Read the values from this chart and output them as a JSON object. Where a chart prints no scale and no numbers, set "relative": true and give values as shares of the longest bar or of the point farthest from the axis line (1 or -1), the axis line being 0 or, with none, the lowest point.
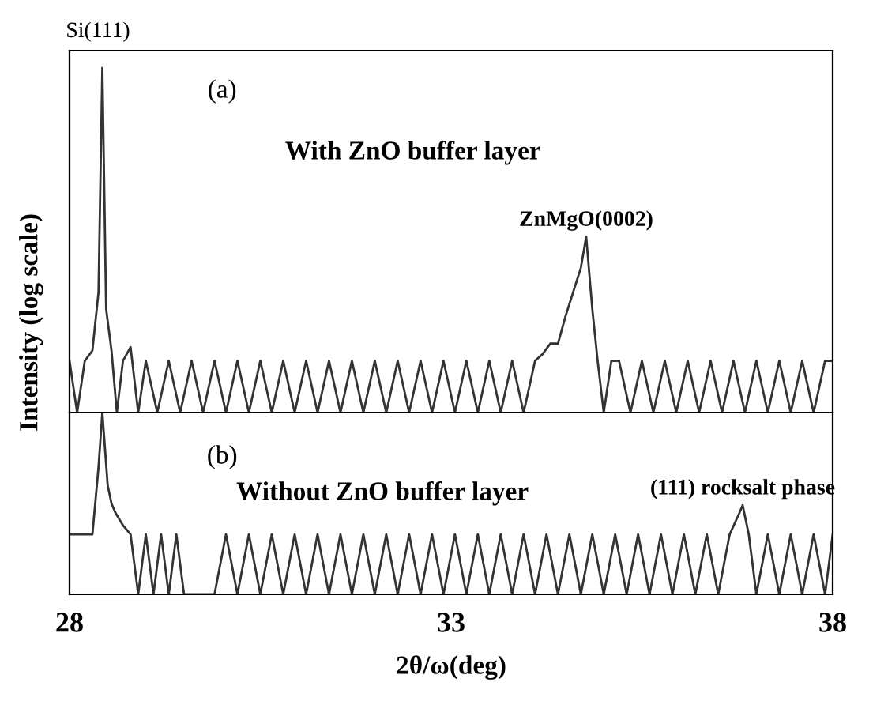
{
  "chart_data": [
    {
      "type": "line",
      "relative": true,
      "xlim": [
        28,
        38
      ],
      "tick_labels": false,
      "ylabel": "Intensity (log scale)",
      "annotations": [
        {
          "text": "Si(111)",
          "x": 28.43,
          "y": 1
        },
        "(a)",
        "With ZnO buffer layer",
        {
          "text": "ZnMgO(0002)",
          "x": 34.77,
          "y": 0.51
        }
      ],
      "series": [
        {
          "color": "#333333",
          "x": [
            28.0,
            28.1,
            28.2,
            28.3,
            28.38,
            28.43,
            28.48,
            28.55,
            28.62,
            28.7,
            28.8,
            28.9,
            29.0,
            29.15,
            29.3,
            29.45,
            29.6,
            29.75,
            29.9,
            30.05,
            30.2,
            30.35,
            30.5,
            30.65,
            30.8,
            30.95,
            31.1,
            31.25,
            31.4,
            31.55,
            31.7,
            31.85,
            32.0,
            32.15,
            32.3,
            32.45,
            32.6,
            32.75,
            32.9,
            33.05,
            33.2,
            33.35,
            33.5,
            33.65,
            33.8,
            33.95,
            34.1,
            34.2,
            34.3,
            34.4,
            34.5,
            34.6,
            34.7,
            34.77,
            34.85,
            34.92,
            35.0,
            35.1,
            35.2,
            35.35,
            35.5,
            35.65,
            35.8,
            35.95,
            36.1,
            36.25,
            36.4,
            36.55,
            36.7,
            36.85,
            37.0,
            37.15,
            37.3,
            37.45,
            37.6,
            37.75,
            37.9,
            38.0
          ],
          "values": [
            0.15,
            0,
            0.15,
            0.18,
            0.35,
            1,
            0.3,
            0.18,
            0,
            0.15,
            0.19,
            0,
            0.15,
            0,
            0.15,
            0,
            0.15,
            0,
            0.15,
            0,
            0.15,
            0,
            0.15,
            0,
            0.15,
            0,
            0.15,
            0,
            0.15,
            0,
            0.15,
            0,
            0.15,
            0,
            0.15,
            0,
            0.15,
            0,
            0.15,
            0,
            0.15,
            0,
            0.15,
            0,
            0.15,
            0,
            0.15,
            0.17,
            0.2,
            0.2,
            0.28,
            0.35,
            0.42,
            0.51,
            0.3,
            0.15,
            0,
            0.15,
            0.15,
            0,
            0.15,
            0,
            0.15,
            0,
            0.15,
            0,
            0.15,
            0,
            0.15,
            0,
            0.15,
            0,
            0.15,
            0,
            0.15,
            0,
            0.15,
            0.15
          ]
        }
      ]
    },
    {
      "type": "line",
      "relative": true,
      "xlim": [
        28,
        38
      ],
      "xticks": [
        28,
        33,
        38
      ],
      "tick_labels": "x",
      "xlabel": "2θ/ω(deg)",
      "annotations": [
        "(b)",
        "Without ZnO buffer layer",
        {
          "text": "(111) rocksalt phase",
          "x": 36.82,
          "y": 0.49
        }
      ],
      "series": [
        {
          "color": "#333333",
          "x": [
            28.0,
            28.1,
            28.2,
            28.3,
            28.38,
            28.43,
            28.5,
            28.55,
            28.6,
            28.7,
            28.8,
            28.9,
            29.0,
            29.1,
            29.2,
            29.3,
            29.4,
            29.5,
            29.9,
            30.05,
            30.2,
            30.35,
            30.5,
            30.65,
            30.8,
            30.95,
            31.1,
            31.25,
            31.4,
            31.55,
            31.7,
            31.85,
            32.0,
            32.15,
            32.3,
            32.45,
            32.6,
            32.75,
            32.9,
            33.05,
            33.2,
            33.35,
            33.5,
            33.65,
            33.8,
            33.95,
            34.1,
            34.25,
            34.4,
            34.55,
            34.7,
            34.85,
            35.0,
            35.15,
            35.3,
            35.45,
            35.6,
            35.75,
            35.9,
            36.05,
            36.2,
            36.35,
            36.5,
            36.65,
            36.78,
            36.82,
            36.9,
            37.0,
            37.15,
            37.3,
            37.45,
            37.6,
            37.75,
            37.9,
            38.0
          ],
          "values": [
            0.33,
            0.33,
            0.33,
            0.33,
            0.7,
            1,
            0.6,
            0.5,
            0.45,
            0.38,
            0.33,
            0,
            0.33,
            0,
            0.33,
            0,
            0.33,
            0,
            0,
            0.33,
            0,
            0.33,
            0,
            0.33,
            0,
            0.33,
            0,
            0.33,
            0,
            0.33,
            0,
            0.33,
            0,
            0.33,
            0,
            0.33,
            0,
            0.33,
            0,
            0.33,
            0,
            0.33,
            0,
            0.33,
            0,
            0.33,
            0,
            0.33,
            0,
            0.33,
            0,
            0.33,
            0,
            0.33,
            0,
            0.33,
            0,
            0.33,
            0,
            0.33,
            0,
            0.33,
            0,
            0.33,
            0.45,
            0.49,
            0.33,
            0,
            0.33,
            0,
            0.33,
            0,
            0.33,
            0,
            0.33
          ]
        }
      ]
    }
  ]
}
